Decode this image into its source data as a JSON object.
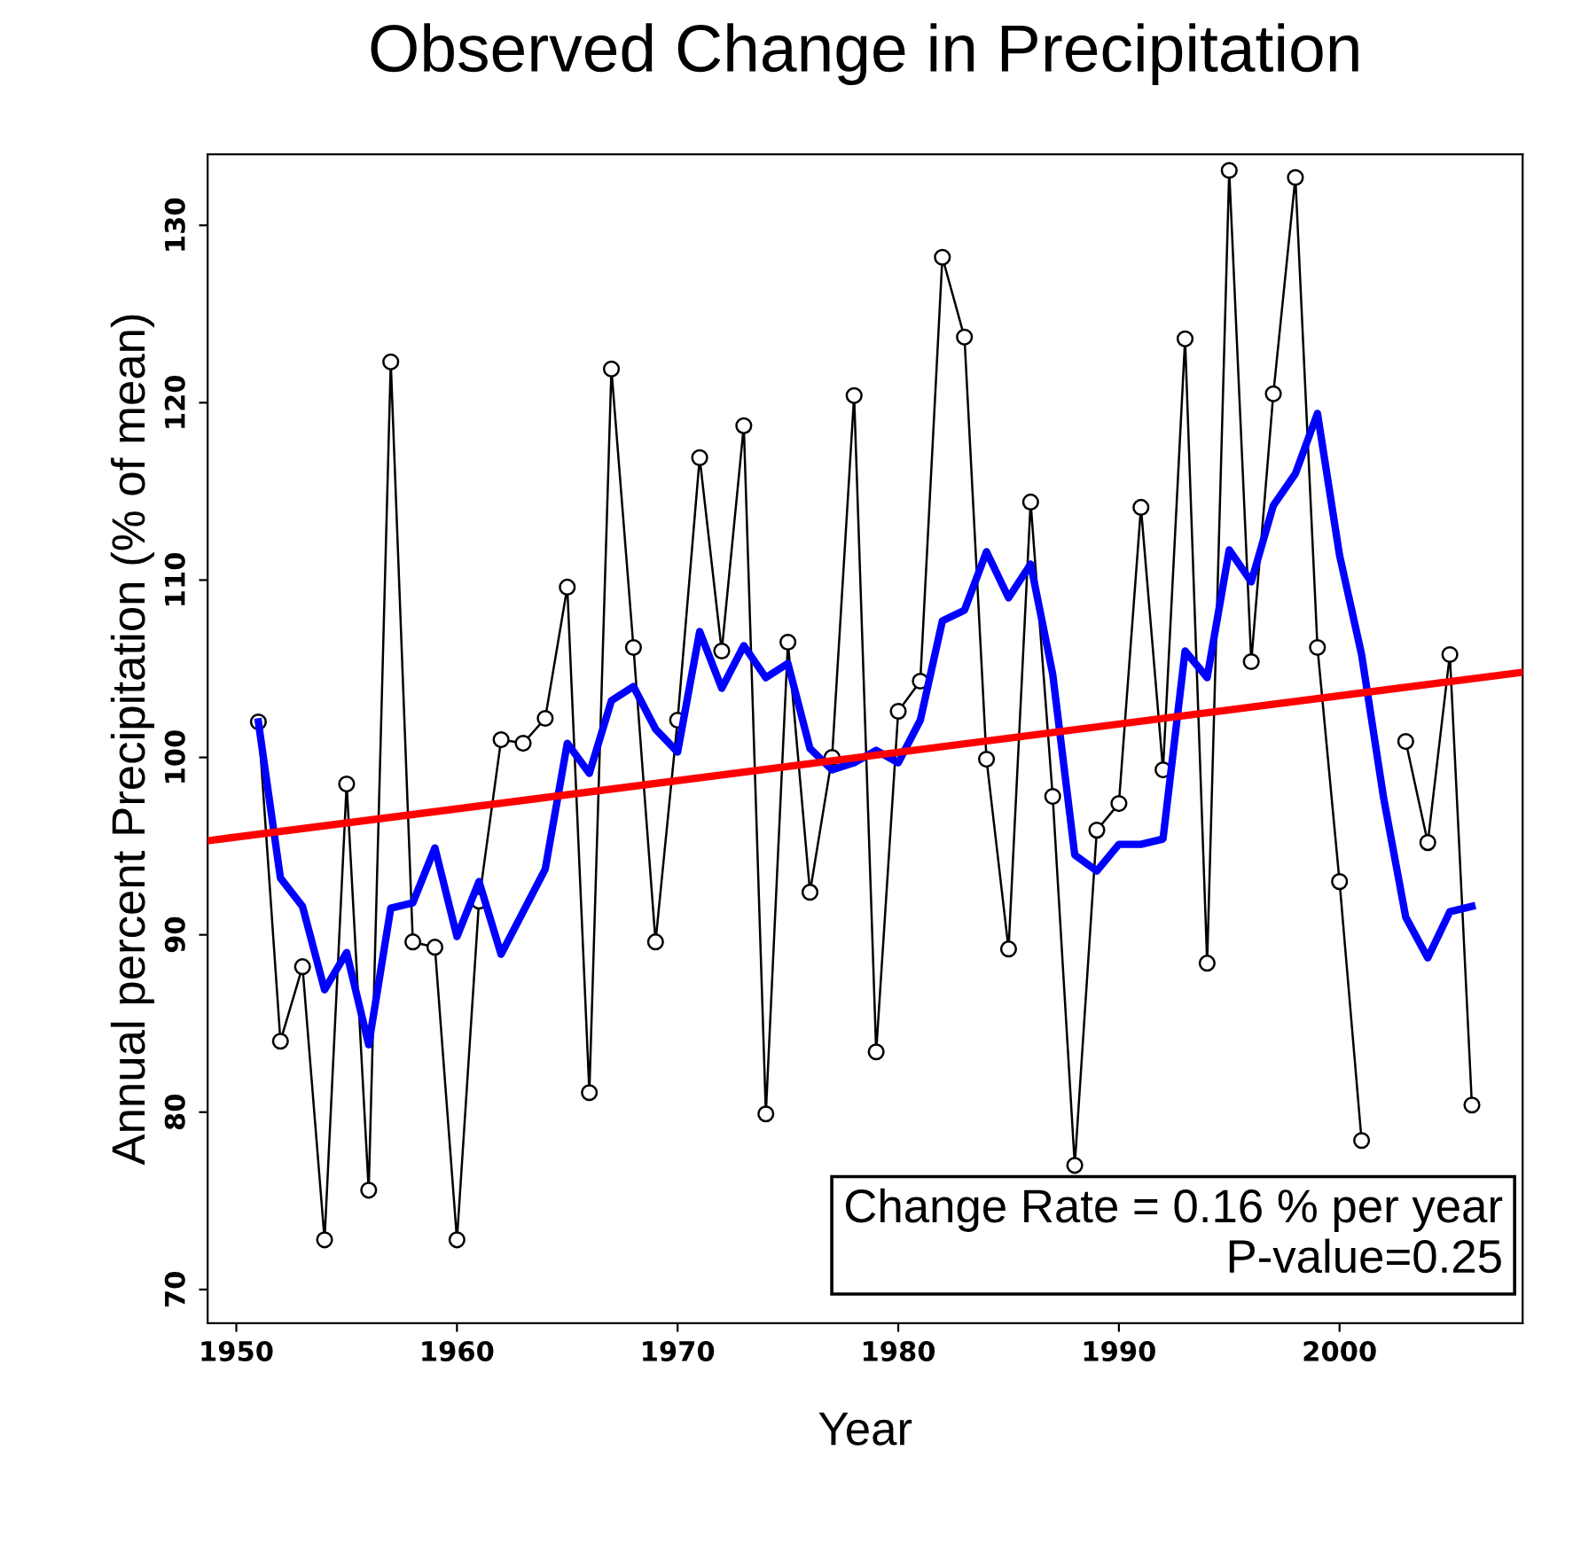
{
  "chart_data": {
    "type": "line",
    "title": "Observed Change in Precipitation",
    "xlabel": "Year",
    "ylabel": "Annual percent Precipitation (% of mean)",
    "x": [
      1951,
      1952,
      1953,
      1954,
      1955,
      1956,
      1957,
      1958,
      1959,
      1960,
      1961,
      1962,
      1963,
      1964,
      1965,
      1966,
      1967,
      1968,
      1969,
      1970,
      1971,
      1972,
      1973,
      1974,
      1975,
      1976,
      1977,
      1978,
      1979,
      1980,
      1981,
      1982,
      1983,
      1984,
      1985,
      1986,
      1987,
      1988,
      1989,
      1990,
      1991,
      1992,
      1993,
      1994,
      1995,
      1996,
      1997,
      1998,
      1999,
      2000,
      2001,
      2002,
      2003,
      2004,
      2005,
      2006
    ],
    "series": [
      {
        "color": "#000000",
        "marker": "circle",
        "values": [
          102.0,
          84.0,
          88.2,
          72.8,
          98.5,
          75.6,
          122.3,
          89.6,
          89.3,
          72.8,
          91.9,
          101.0,
          100.8,
          102.2,
          109.6,
          81.1,
          121.9,
          106.2,
          89.6,
          102.1,
          116.9,
          106.0,
          118.7,
          79.9,
          106.5,
          92.4,
          100.0,
          120.4,
          83.4,
          102.6,
          104.3,
          128.2,
          123.7,
          99.9,
          89.2,
          114.4,
          97.8,
          77.0,
          95.9,
          97.4,
          114.1,
          99.3,
          123.6,
          88.4,
          133.1,
          105.4,
          120.5,
          132.7,
          106.2,
          93.0,
          78.4,
          null,
          100.9,
          95.2,
          105.8,
          80.4
        ]
      },
      {
        "color": "#0000ff",
        "values": [
          102.0,
          93.2,
          91.6,
          86.9,
          89.0,
          83.8,
          91.5,
          91.8,
          94.9,
          89.9,
          93.0,
          88.9,
          91.3,
          93.7,
          100.8,
          99.1,
          103.2,
          104.0,
          101.6,
          100.3,
          107.1,
          103.9,
          106.3,
          104.5,
          105.3,
          100.5,
          99.3,
          99.7,
          100.4,
          99.7,
          102.1,
          107.7,
          108.3,
          111.6,
          109.0,
          110.9,
          104.7,
          94.5,
          93.6,
          95.1,
          95.1,
          95.4,
          106.0,
          104.5,
          111.7,
          109.9,
          114.2,
          116.0,
          119.4,
          111.4,
          105.8,
          97.7,
          91.0,
          88.7,
          91.3,
          91.6
        ]
      },
      {
        "color": "#ff0000",
        "x": [
          1948.7,
          2008.3
        ],
        "values": [
          95.3,
          104.8
        ]
      }
    ],
    "xlim": [
      1948.7,
      2008.3
    ],
    "ylim": [
      68.1,
      134.0
    ],
    "xticks": [
      1950,
      1960,
      1970,
      1980,
      1990,
      2000
    ],
    "yticks": [
      70,
      80,
      90,
      100,
      110,
      120,
      130
    ],
    "annotations": [
      "Change Rate = 0.16 % per year",
      "P-value=0.25"
    ]
  }
}
